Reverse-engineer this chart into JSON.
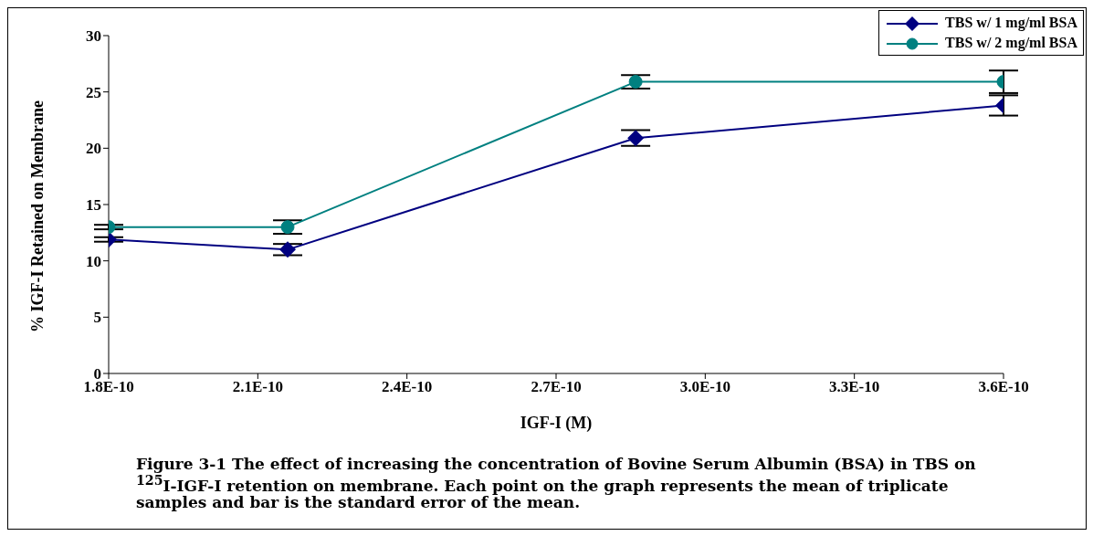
{
  "chart_data": {
    "type": "line",
    "xlabel": "IGF-I (M)",
    "ylabel": "% IGF-I Retained on Membrane",
    "x": [
      1.8e-10,
      2.16e-10,
      2.86e-10,
      3.6e-10
    ],
    "series": [
      {
        "name": "TBS w/ 1 mg/ml BSA",
        "color": "#000080",
        "marker": "diamond",
        "values": [
          11.9,
          11.0,
          20.9,
          23.8
        ],
        "errors": [
          0.2,
          0.5,
          0.7,
          0.9
        ]
      },
      {
        "name": "TBS w/ 2 mg/ml BSA",
        "color": "#008080",
        "marker": "circle",
        "values": [
          13.0,
          13.0,
          25.9,
          25.9
        ],
        "errors": [
          0.2,
          0.6,
          0.6,
          1.0
        ]
      }
    ],
    "xlim": [
      1.8e-10,
      3.6e-10
    ],
    "xticks": [
      {
        "value": 1.8e-10,
        "label": "1.8E-10"
      },
      {
        "value": 2.1e-10,
        "label": "2.1E-10"
      },
      {
        "value": 2.4e-10,
        "label": "2.4E-10"
      },
      {
        "value": 2.7e-10,
        "label": "2.7E-10"
      },
      {
        "value": 3e-10,
        "label": "3.0E-10"
      },
      {
        "value": 3.3e-10,
        "label": "3.3E-10"
      },
      {
        "value": 3.6e-10,
        "label": "3.6E-10"
      }
    ],
    "ylim": [
      0,
      30
    ],
    "yticks": [
      0,
      5,
      10,
      15,
      20,
      25,
      30
    ],
    "grid": false,
    "legend": "top right",
    "line_style": "solid",
    "annotations": [
      "Figure 3-1   The effect of increasing the concentration of Bovine Serum Albumin (BSA) in TBS on $^{125}$I-IGF-I retention on membrane. Each point on the graph represents the mean of triplicate samples and bar is the standard error of the mean."
    ]
  }
}
